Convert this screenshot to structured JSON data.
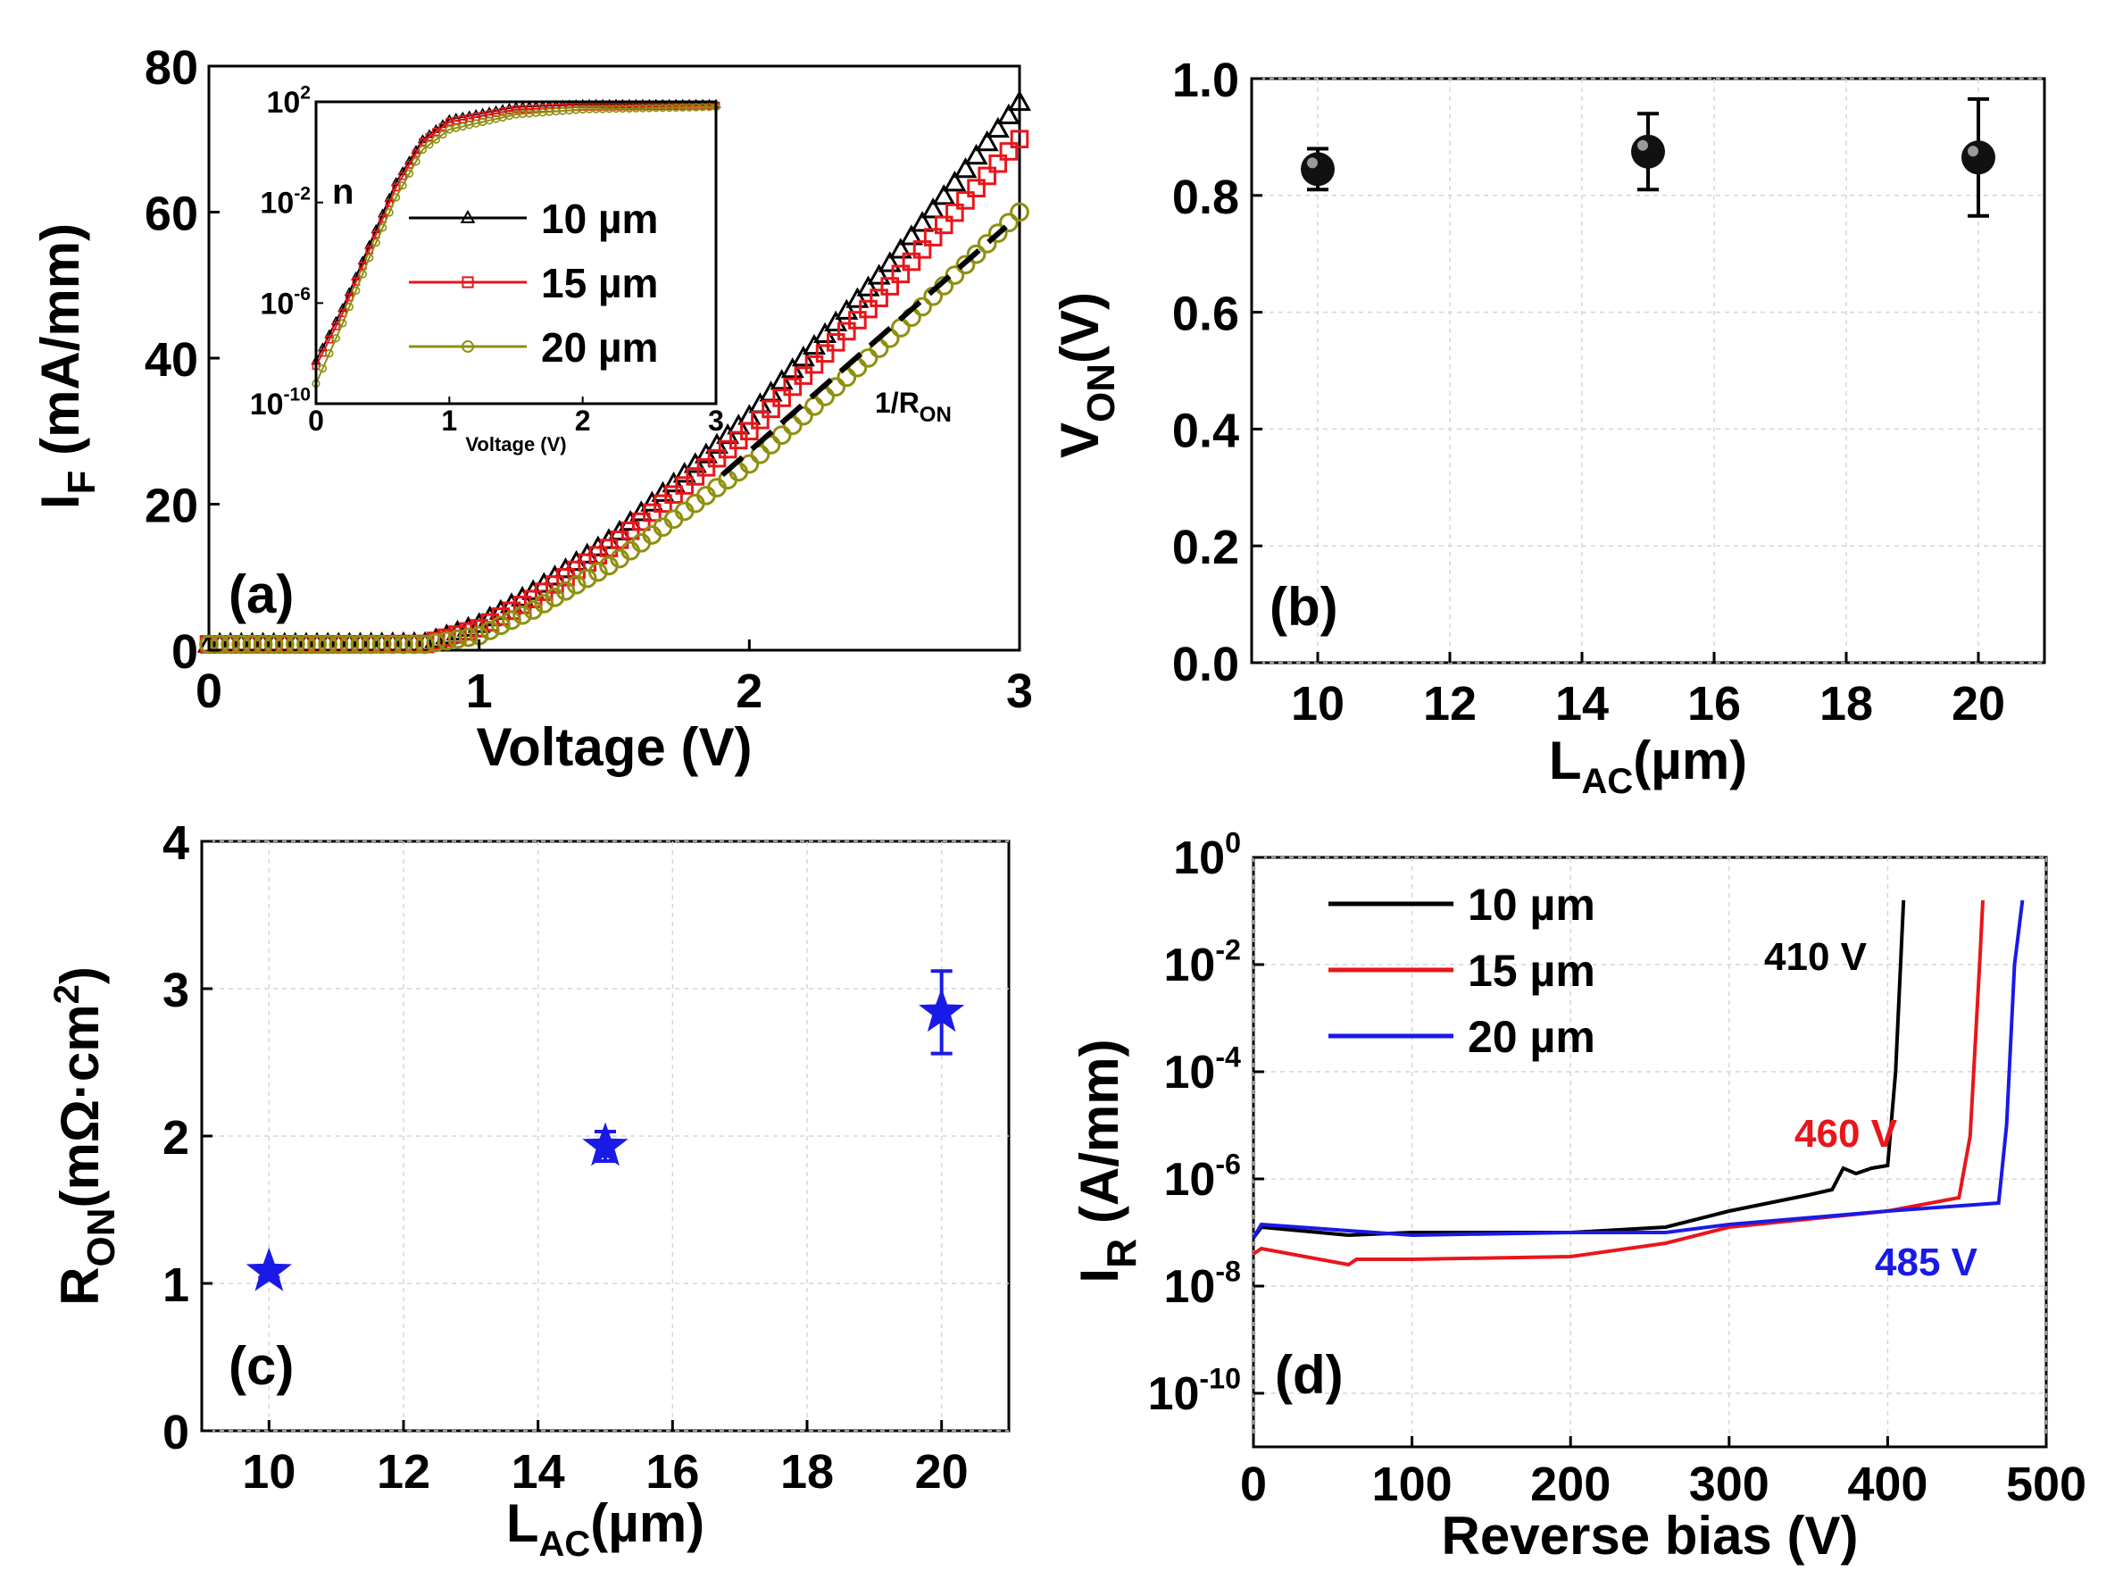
{
  "chart_data": [
    {
      "panel": "(a)",
      "type": "line",
      "xlabel": "Voltage (V)",
      "ylabel": "I",
      "ylabel_sub": "F",
      "ylabel_rest": " (mA/mm)",
      "xlim": [
        0,
        3
      ],
      "ylim": [
        0,
        80
      ],
      "xticks": [
        "0",
        "1",
        "2",
        "3"
      ],
      "yticks": [
        "0",
        "20",
        "40",
        "60",
        "80"
      ],
      "annotation": {
        "text": "1/R",
        "sub": "ON"
      },
      "series": [
        {
          "name": "10 µm",
          "color": "#000000",
          "marker": "triangle",
          "x": [
            0.0,
            0.5,
            0.8,
            1.0,
            1.2,
            1.5,
            2.0,
            2.5,
            3.0
          ],
          "y": [
            0.8,
            0.8,
            0.9,
            3.5,
            8.0,
            15.5,
            32.0,
            52.0,
            75.0
          ]
        },
        {
          "name": "15 µm",
          "color": "#e8161b",
          "marker": "square",
          "x": [
            0.0,
            0.5,
            0.8,
            1.0,
            1.2,
            1.5,
            2.0,
            2.5,
            3.0
          ],
          "y": [
            0.8,
            0.8,
            0.85,
            3.0,
            7.0,
            14.5,
            30.0,
            49.0,
            70.0
          ]
        },
        {
          "name": "20 µm",
          "color": "#8f8f10",
          "marker": "circle",
          "x": [
            0.0,
            0.5,
            0.8,
            1.0,
            1.2,
            1.5,
            2.0,
            2.5,
            3.0
          ],
          "y": [
            0.8,
            0.8,
            0.8,
            2.0,
            5.5,
            12.0,
            25.5,
            42.0,
            60.0
          ]
        }
      ],
      "fit_line": {
        "x": [
          1.9,
          2.95
        ],
        "y": [
          24.0,
          58.0
        ]
      },
      "inset": {
        "type": "line",
        "xlabel": "Voltage (V)",
        "ylabel": "n",
        "scale_y": "log",
        "xlim": [
          0,
          3
        ],
        "ylim_exp": [
          -10,
          2
        ],
        "xticks": [
          "0",
          "1",
          "2",
          "3"
        ],
        "yticks": [
          {
            "base": "10",
            "exp": "2"
          },
          {
            "base": "10",
            "exp": "-2"
          },
          {
            "base": "10",
            "exp": "-6"
          },
          {
            "base": "10",
            "exp": "-10"
          }
        ],
        "series": [
          {
            "name": "10 µm",
            "x": [
              0.0,
              0.2,
              0.4,
              0.6,
              0.8,
              1.0,
              1.5,
              2.0,
              3.0
            ],
            "log10y": [
              -8.3,
              -6.2,
              -3.7,
              -1.2,
              0.5,
              1.3,
              1.8,
              1.9,
              1.9
            ]
          },
          {
            "name": "15 µm",
            "x": [
              0.0,
              0.2,
              0.4,
              0.6,
              0.8,
              1.0,
              1.5,
              2.0,
              3.0
            ],
            "log10y": [
              -8.5,
              -6.4,
              -3.9,
              -1.4,
              0.4,
              1.2,
              1.7,
              1.8,
              1.85
            ]
          },
          {
            "name": "20 µm",
            "x": [
              0.0,
              0.2,
              0.4,
              0.6,
              0.8,
              1.0,
              1.5,
              2.0,
              3.0
            ],
            "log10y": [
              -9.2,
              -6.8,
              -4.2,
              -1.8,
              0.1,
              0.9,
              1.5,
              1.7,
              1.8
            ]
          }
        ]
      }
    },
    {
      "panel": "(b)",
      "type": "scatter",
      "xlabel_main": "L",
      "xlabel_sub": "AC",
      "xlabel_rest": "(µm)",
      "ylabel": "V",
      "ylabel_sub": "ON",
      "ylabel_rest": "(V)",
      "xlim": [
        9,
        21
      ],
      "ylim": [
        0,
        1.0
      ],
      "xticks": [
        "10",
        "12",
        "14",
        "16",
        "18",
        "20"
      ],
      "yticks": [
        "0.0",
        "0.2",
        "0.4",
        "0.6",
        "0.8",
        "1.0"
      ],
      "color": "#000000",
      "x": [
        10,
        15,
        20
      ],
      "y": [
        0.845,
        0.875,
        0.865
      ],
      "yerr": [
        0.035,
        0.065,
        0.1
      ]
    },
    {
      "panel": "(c)",
      "type": "scatter",
      "xlabel_main": "L",
      "xlabel_sub": "AC",
      "xlabel_rest": "(µm)",
      "ylabel": "R",
      "ylabel_sub": "ON",
      "ylabel_rest": "(mΩ·cm",
      "ylabel_sup": "2",
      "ylabel_end": ")",
      "xlim": [
        9,
        21
      ],
      "ylim": [
        0,
        4
      ],
      "xticks": [
        "10",
        "12",
        "14",
        "16",
        "18",
        "20"
      ],
      "yticks": [
        "0",
        "1",
        "2",
        "3",
        "4"
      ],
      "color": "#1a1ae6",
      "x": [
        10,
        15,
        20
      ],
      "y": [
        1.08,
        1.93,
        2.84
      ],
      "yerr": [
        0.04,
        0.1,
        0.28
      ]
    },
    {
      "panel": "(d)",
      "type": "line",
      "scale_y": "log",
      "xlabel": "Reverse bias (V)",
      "ylabel": "I",
      "ylabel_sub": "R",
      "ylabel_rest": " (A/mm)",
      "xlim": [
        0,
        500
      ],
      "ylim_exp": [
        -11,
        0
      ],
      "xticks": [
        "0",
        "100",
        "200",
        "300",
        "400",
        "500"
      ],
      "yticks": [
        {
          "base": "10",
          "exp": "0"
        },
        {
          "base": "10",
          "exp": "-2"
        },
        {
          "base": "10",
          "exp": "-4"
        },
        {
          "base": "10",
          "exp": "-6"
        },
        {
          "base": "10",
          "exp": "-8"
        },
        {
          "base": "10",
          "exp": "-10"
        }
      ],
      "series": [
        {
          "name": "10 µm",
          "color": "#000000",
          "x": [
            0,
            5,
            60,
            100,
            200,
            260,
            300,
            350,
            365,
            372,
            380,
            390,
            400,
            405,
            410
          ],
          "log10y": [
            -7.1,
            -6.9,
            -7.05,
            -7.0,
            -7.0,
            -6.9,
            -6.6,
            -6.3,
            -6.2,
            -5.8,
            -5.9,
            -5.8,
            -5.75,
            -4.0,
            -0.8
          ]
        },
        {
          "name": "15 µm",
          "color": "#e8161b",
          "x": [
            0,
            5,
            60,
            65,
            100,
            200,
            260,
            300,
            400,
            445,
            452,
            458,
            460
          ],
          "log10y": [
            -7.4,
            -7.3,
            -7.6,
            -7.5,
            -7.5,
            -7.45,
            -7.2,
            -6.9,
            -6.6,
            -6.35,
            -5.2,
            -2.0,
            -0.8
          ]
        },
        {
          "name": "20 µm",
          "color": "#1a1ae6",
          "x": [
            0,
            5,
            100,
            200,
            260,
            300,
            400,
            470,
            475,
            480,
            485
          ],
          "log10y": [
            -7.1,
            -6.85,
            -7.05,
            -7.0,
            -7.0,
            -6.85,
            -6.6,
            -6.45,
            -5.0,
            -2.0,
            -0.8
          ]
        }
      ],
      "annotations": [
        {
          "text": "410 V",
          "color": "#000000"
        },
        {
          "text": "460 V",
          "color": "#e8161b"
        },
        {
          "text": "485 V",
          "color": "#1a1ae6"
        }
      ]
    }
  ]
}
